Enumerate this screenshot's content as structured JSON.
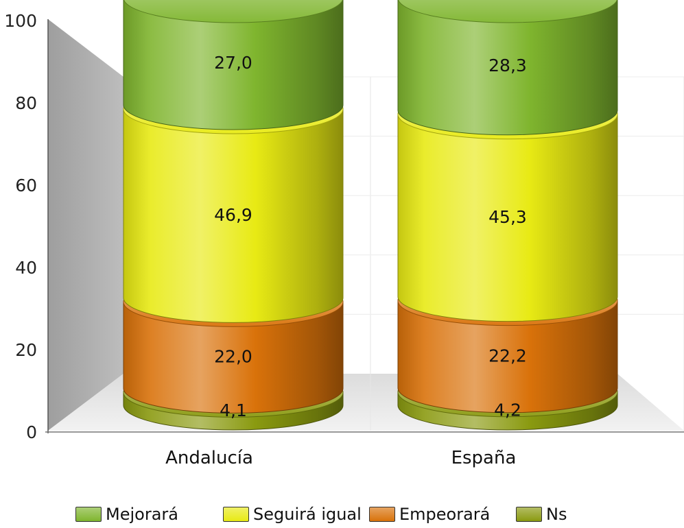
{
  "chart_data": {
    "type": "bar",
    "stacked": true,
    "style": "3d-cylinder",
    "categories": [
      "Andalucía",
      "España"
    ],
    "series": [
      {
        "name": "Ns",
        "values": [
          4.1,
          4.2
        ],
        "labels": [
          "4,1",
          "4,2"
        ],
        "color": "#8a9a10"
      },
      {
        "name": "Empeorará",
        "values": [
          22.0,
          22.2
        ],
        "labels": [
          "22,0",
          "22,2"
        ],
        "color": "#d9720a"
      },
      {
        "name": "Seguirá igual",
        "values": [
          46.9,
          45.3
        ],
        "labels": [
          "46,9",
          "45,3"
        ],
        "color": "#e8ea14"
      },
      {
        "name": "Mejorará",
        "values": [
          27.0,
          28.3
        ],
        "labels": [
          "27,0",
          "28,3"
        ],
        "color": "#7fb52e"
      }
    ],
    "yticks": [
      "0",
      "20",
      "40",
      "60",
      "80",
      "100"
    ],
    "ylim": [
      0,
      100
    ],
    "grid": true,
    "legend_position": "bottom",
    "legend": [
      {
        "name": "Mejorará",
        "color": "#7fb52e"
      },
      {
        "name": "Seguirá igual",
        "color": "#e8ea14"
      },
      {
        "name": "Empeorará",
        "color": "#d9720a"
      },
      {
        "name": "Ns",
        "color": "#8a9a10"
      }
    ]
  }
}
